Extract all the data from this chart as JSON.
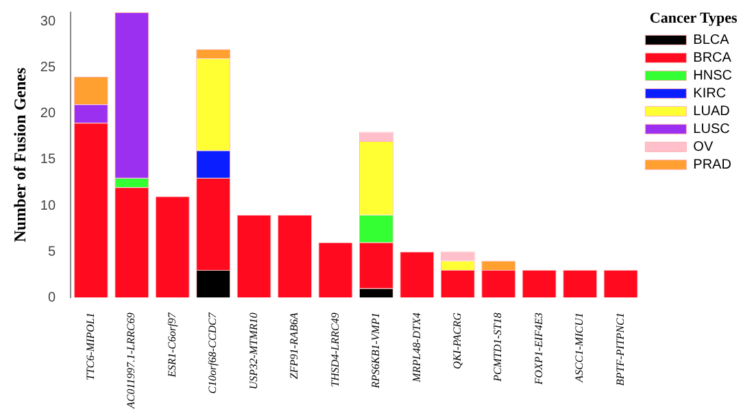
{
  "chart_data": {
    "type": "bar",
    "ylabel": "Number of Fusion Genes",
    "legend_title": "Cancer Types",
    "stacked": true,
    "legend": "top right",
    "grid": false,
    "categories": [
      "TTC6-MIPOL1",
      "AC011997.1-LRRC69",
      "ESR1-C6orf97",
      "C10orf68-CCDC7",
      "USP32-MTMR10",
      "ZFP91-RAB6A",
      "THSD4-LRRC49",
      "RPS6KB1-VMP1",
      "MRPL48-DTX4",
      "QKI-PACRG",
      "PCMTD1-ST18",
      "FOXP1-EIF4E3",
      "ASCC1-MICU1",
      "BPTF-PITPNC1"
    ],
    "ylim": [
      0,
      31
    ],
    "yticks": [
      0,
      5,
      10,
      15,
      20,
      25,
      30
    ],
    "series": [
      {
        "name": "BLCA",
        "color": "#000000",
        "values": [
          0,
          0,
          0,
          3,
          0,
          0,
          0,
          1,
          0,
          0,
          0,
          0,
          0,
          0
        ]
      },
      {
        "name": "BRCA",
        "color": "#ff0a1e",
        "values": [
          19,
          12,
          11,
          10,
          9,
          9,
          6,
          5,
          5,
          3,
          3,
          3,
          3,
          3
        ]
      },
      {
        "name": "HNSC",
        "color": "#33ff33",
        "values": [
          0,
          1,
          0,
          0,
          0,
          0,
          0,
          3,
          0,
          0,
          0,
          0,
          0,
          0
        ]
      },
      {
        "name": "KIRC",
        "color": "#0a1eff",
        "values": [
          0,
          0,
          0,
          3,
          0,
          0,
          0,
          0,
          0,
          0,
          0,
          0,
          0,
          0
        ]
      },
      {
        "name": "LUAD",
        "color": "#ffff33",
        "values": [
          0,
          0,
          0,
          10,
          0,
          0,
          0,
          8,
          0,
          1,
          0,
          0,
          0,
          0
        ]
      },
      {
        "name": "LUSC",
        "color": "#9b30f0",
        "values": [
          2,
          18,
          0,
          0,
          0,
          0,
          0,
          0,
          0,
          0,
          0,
          0,
          0,
          0
        ]
      },
      {
        "name": "OV",
        "color": "#ffc0cb",
        "values": [
          0,
          0,
          0,
          0,
          0,
          0,
          0,
          1,
          0,
          1,
          0,
          0,
          0,
          0
        ]
      },
      {
        "name": "PRAD",
        "color": "#ffa030",
        "values": [
          3,
          0,
          0,
          1,
          0,
          0,
          0,
          0,
          0,
          0,
          1,
          0,
          0,
          0
        ]
      }
    ]
  }
}
